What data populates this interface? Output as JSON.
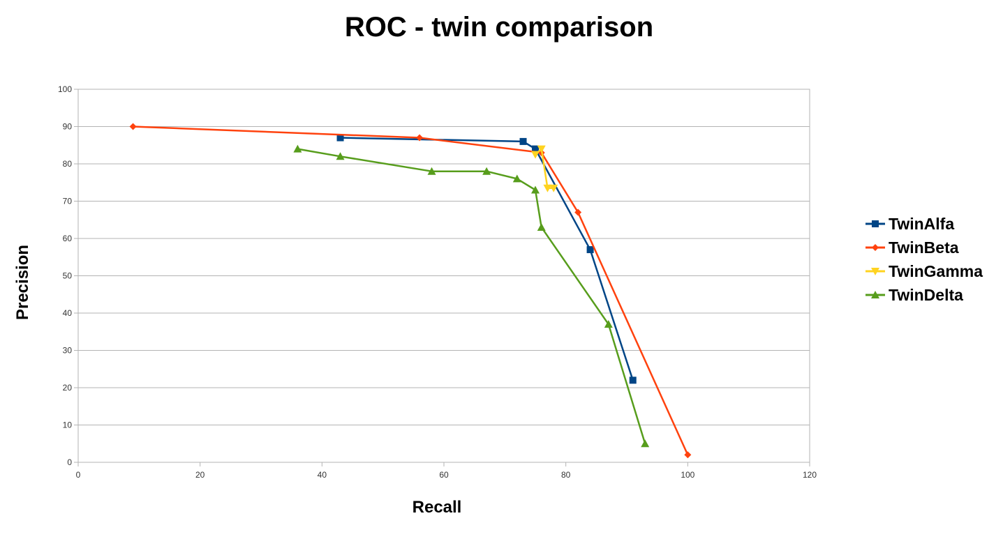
{
  "chart_data": {
    "type": "line",
    "title": "ROC - twin comparison",
    "xlabel": "Recall",
    "ylabel": "Precision",
    "xlim": [
      0,
      120
    ],
    "ylim": [
      0,
      100
    ],
    "xticks": [
      "0",
      "20",
      "40",
      "60",
      "80",
      "100",
      "120"
    ],
    "yticks": [
      "0",
      "10",
      "20",
      "30",
      "40",
      "50",
      "60",
      "70",
      "80",
      "90",
      "100"
    ],
    "grid": "horizontal",
    "legend_position": "right",
    "series": [
      {
        "name": "TwinAlfa",
        "color": "#004586",
        "marker": "square",
        "x": [
          43,
          73,
          75,
          84,
          91
        ],
        "y": [
          87,
          86,
          84,
          57,
          22
        ]
      },
      {
        "name": "TwinBeta",
        "color": "#ff420e",
        "marker": "diamond",
        "x": [
          9,
          56,
          76,
          82,
          100
        ],
        "y": [
          90,
          87,
          83,
          67,
          2
        ]
      },
      {
        "name": "TwinGamma",
        "color": "#ffd320",
        "marker": "triangle-down",
        "x": [
          75,
          76,
          77,
          78
        ],
        "y": [
          82.5,
          84,
          73.5,
          73.5
        ]
      },
      {
        "name": "TwinDelta",
        "color": "#579d1c",
        "marker": "triangle-up",
        "x": [
          36,
          43,
          58,
          67,
          72,
          75,
          76,
          87,
          93
        ],
        "y": [
          84,
          82,
          78,
          78,
          76,
          73,
          63,
          37,
          5
        ]
      }
    ]
  }
}
